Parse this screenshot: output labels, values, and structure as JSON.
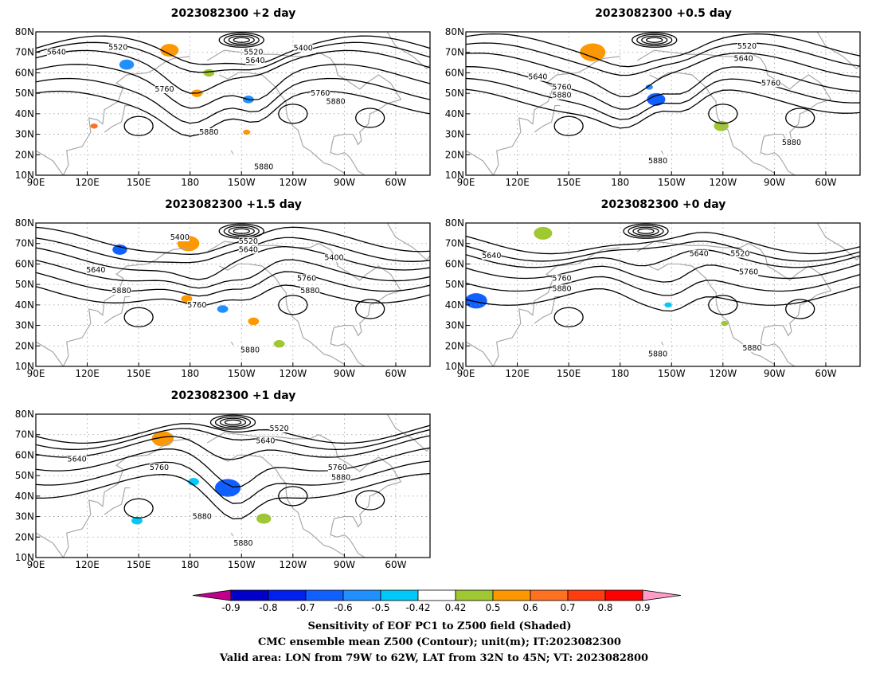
{
  "panels": [
    {
      "id": "p1",
      "title": "2023082300 +2 day",
      "contour_labels": [
        {
          "text": "5520",
          "lon": 138,
          "lat": 72.5
        },
        {
          "text": "5640",
          "lon": 102,
          "lat": 70
        },
        {
          "text": "5520",
          "lon": 217,
          "lat": 70
        },
        {
          "text": "5400",
          "lon": 246,
          "lat": 72
        },
        {
          "text": "5640",
          "lon": 218,
          "lat": 66
        },
        {
          "text": "5760",
          "lon": 165,
          "lat": 52
        },
        {
          "text": "5760",
          "lon": 256,
          "lat": 50
        },
        {
          "text": "5880",
          "lon": 265,
          "lat": 46
        },
        {
          "text": "5880",
          "lon": 191,
          "lat": 31
        },
        {
          "text": "5880",
          "lon": 223,
          "lat": 14
        }
      ]
    },
    {
      "id": "p2",
      "title": "2023082300 +0.5 day",
      "contour_labels": [
        {
          "text": "5520",
          "lon": 254,
          "lat": 73
        },
        {
          "text": "5640",
          "lon": 252,
          "lat": 67
        },
        {
          "text": "5640",
          "lon": 132,
          "lat": 58
        },
        {
          "text": "5760",
          "lon": 146,
          "lat": 53
        },
        {
          "text": "5880",
          "lon": 146,
          "lat": 49
        },
        {
          "text": "5760",
          "lon": 268,
          "lat": 55
        },
        {
          "text": "5880",
          "lon": 280,
          "lat": 26
        },
        {
          "text": "5880",
          "lon": 202,
          "lat": 17
        }
      ]
    },
    {
      "id": "p3",
      "title": "2023082300 +1.5 day",
      "contour_labels": [
        {
          "text": "5400",
          "lon": 174,
          "lat": 73
        },
        {
          "text": "5520",
          "lon": 214,
          "lat": 71
        },
        {
          "text": "5640",
          "lon": 214,
          "lat": 67
        },
        {
          "text": "5400",
          "lon": 264,
          "lat": 63
        },
        {
          "text": "5640",
          "lon": 125,
          "lat": 57
        },
        {
          "text": "5760",
          "lon": 248,
          "lat": 53
        },
        {
          "text": "5880",
          "lon": 250,
          "lat": 47
        },
        {
          "text": "5880",
          "lon": 140,
          "lat": 47
        },
        {
          "text": "5760",
          "lon": 184,
          "lat": 40
        },
        {
          "text": "5880",
          "lon": 215,
          "lat": 18
        }
      ]
    },
    {
      "id": "p4",
      "title": "2023082300 +0 day",
      "contour_labels": [
        {
          "text": "5640",
          "lon": 105,
          "lat": 64
        },
        {
          "text": "5640",
          "lon": 226,
          "lat": 65
        },
        {
          "text": "5520",
          "lon": 250,
          "lat": 65
        },
        {
          "text": "5760",
          "lon": 146,
          "lat": 53
        },
        {
          "text": "5880",
          "lon": 146,
          "lat": 48
        },
        {
          "text": "5760",
          "lon": 255,
          "lat": 56
        },
        {
          "text": "5880",
          "lon": 202,
          "lat": 16
        },
        {
          "text": "5880",
          "lon": 257,
          "lat": 19
        }
      ]
    },
    {
      "id": "p5",
      "title": "2023082300 +1 day",
      "contour_labels": [
        {
          "text": "5520",
          "lon": 232,
          "lat": 73
        },
        {
          "text": "5640",
          "lon": 224,
          "lat": 67
        },
        {
          "text": "5640",
          "lon": 114,
          "lat": 58
        },
        {
          "text": "5760",
          "lon": 162,
          "lat": 54
        },
        {
          "text": "5760",
          "lon": 266,
          "lat": 54
        },
        {
          "text": "5880",
          "lon": 268,
          "lat": 49
        },
        {
          "text": "5880",
          "lon": 187,
          "lat": 30
        },
        {
          "text": "5880",
          "lon": 211,
          "lat": 17
        }
      ]
    }
  ],
  "axes": {
    "lon_ticks": [
      "90E",
      "120E",
      "150E",
      "180",
      "150W",
      "120W",
      "90W",
      "60W"
    ],
    "lon_values": [
      90,
      120,
      150,
      180,
      210,
      240,
      270,
      300
    ],
    "lat_ticks": [
      "10N",
      "20N",
      "30N",
      "40N",
      "50N",
      "60N",
      "70N",
      "80N"
    ],
    "lat_values": [
      10,
      20,
      30,
      40,
      50,
      60,
      70,
      80
    ],
    "lon_range": [
      90,
      320
    ],
    "lat_range": [
      10,
      80
    ]
  },
  "colorbar": {
    "labels": [
      "-0.9",
      "-0.8",
      "-0.7",
      "-0.6",
      "-0.5",
      "-0.42",
      "0.42",
      "0.5",
      "0.6",
      "0.7",
      "0.8",
      "0.9"
    ],
    "colors": [
      "#c0008c",
      "#0000c8",
      "#0020f0",
      "#1060ff",
      "#2090ff",
      "#00c8f8",
      "#ffffff",
      "#a0c830",
      "#ff9800",
      "#ff7020",
      "#ff3c10",
      "#ff0000",
      "#ff9cc8"
    ]
  },
  "captions": {
    "line1": "Sensitivity of EOF PC1 to Z500 field (Shaded)",
    "line2": "CMC ensemble mean Z500 (Contour); unit(m); IT:2023082300",
    "line3": "Valid area: LON from 79W to 62W, LAT from 32N to 45N; VT: 2023082800"
  }
}
